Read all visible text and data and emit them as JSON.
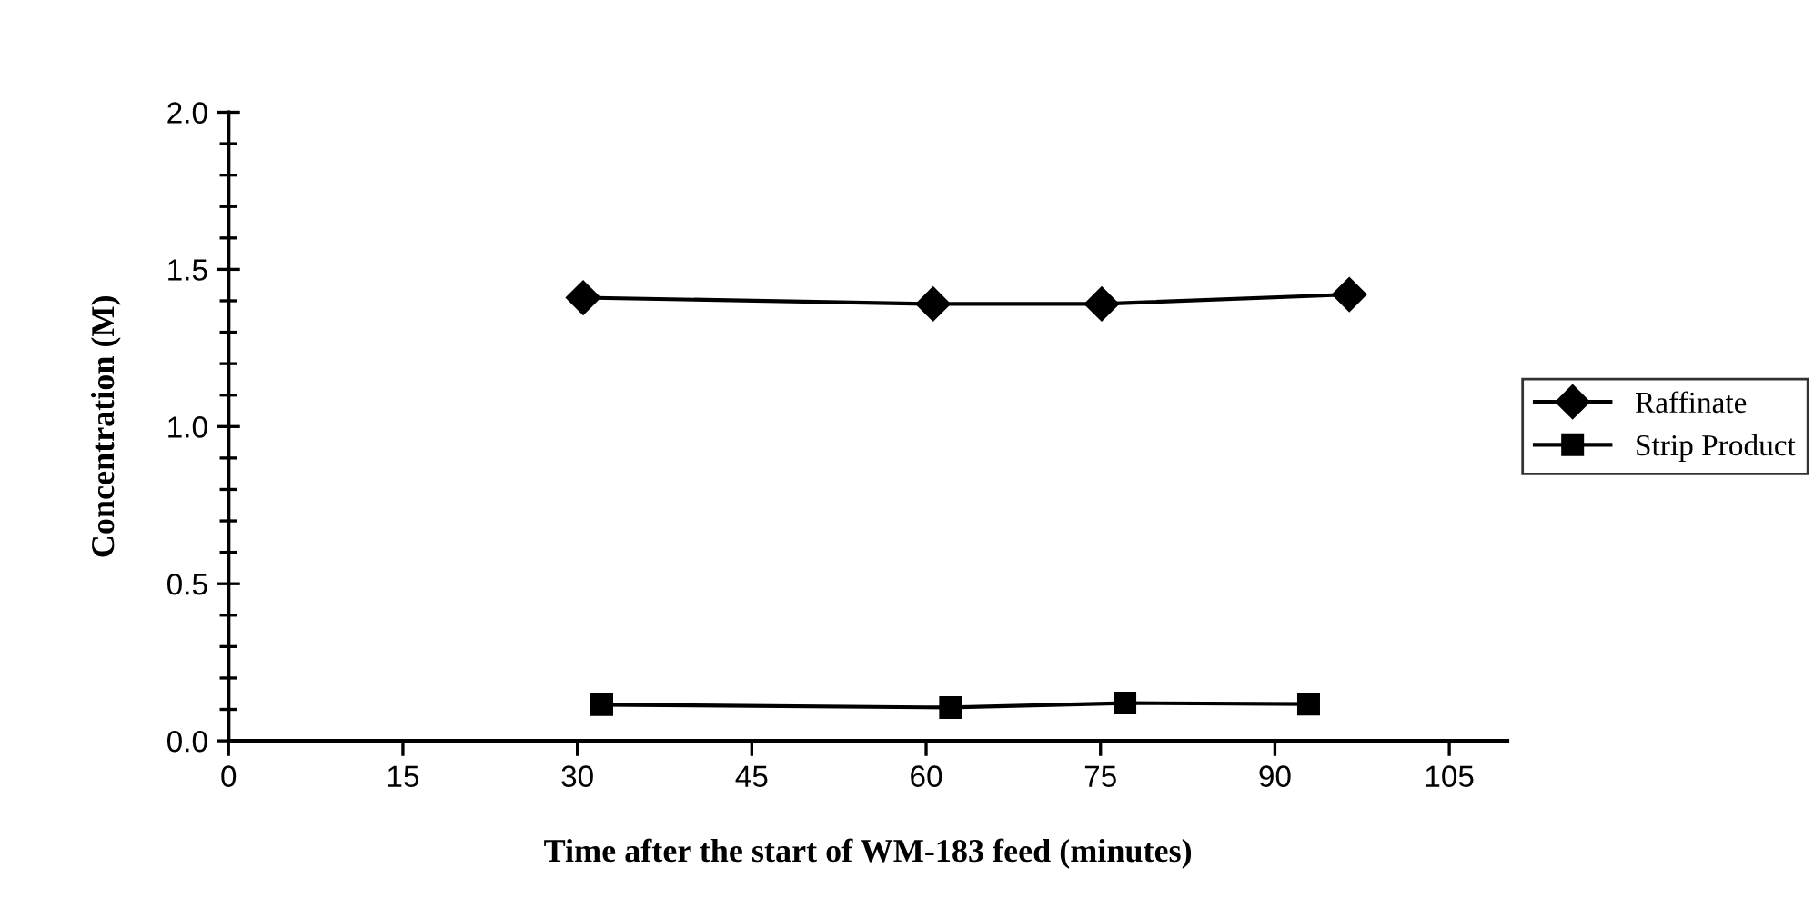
{
  "chart_data": {
    "type": "line",
    "xlabel": "Time after the start of WM-183 feed (minutes)",
    "ylabel": "Concentration (M)",
    "xlim": [
      0,
      110
    ],
    "xticks": [
      0,
      15,
      30,
      45,
      60,
      75,
      90,
      105
    ],
    "ylim": [
      0,
      2.0
    ],
    "yticks": [
      {
        "value": 0,
        "label": "0.0"
      },
      {
        "value": 0.5,
        "label": "0.5"
      },
      {
        "value": 1.0,
        "label": "1.0"
      },
      {
        "value": 1.5,
        "label": "1.5"
      },
      {
        "value": 2.0,
        "label": "2.0"
      }
    ],
    "grid": false,
    "legend": "right",
    "line_style": "solid",
    "series": [
      {
        "name": "Raffinate",
        "color": "#000000",
        "marker": "diamond",
        "x": [
          30.5,
          60.6,
          75.1,
          96.4
        ],
        "values": [
          1.41,
          1.39,
          1.39,
          1.42
        ]
      },
      {
        "name": "Strip Product",
        "color": "#000000",
        "marker": "square",
        "x": [
          32.1,
          62.1,
          77.1,
          92.9
        ],
        "values": [
          0.115,
          0.106,
          0.12,
          0.117
        ]
      }
    ]
  }
}
